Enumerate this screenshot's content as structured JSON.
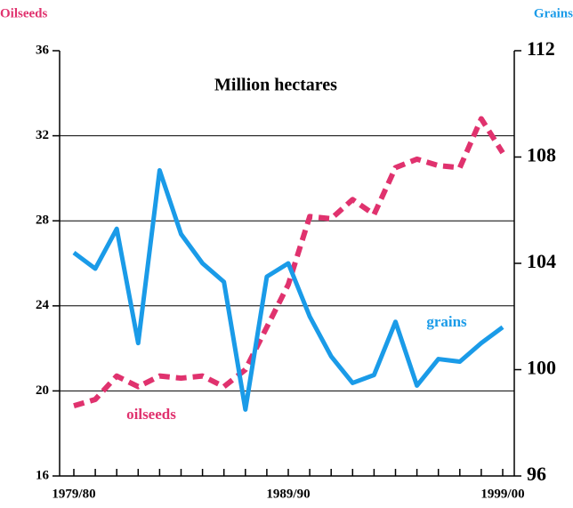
{
  "chart_data": {
    "type": "line",
    "title": "Million hectares",
    "y_label": "Oilseeds",
    "y2_label": "Grains",
    "categories": [
      "1979/80",
      null,
      null,
      null,
      null,
      null,
      null,
      null,
      null,
      null,
      "1989/90",
      null,
      null,
      null,
      null,
      null,
      null,
      null,
      null,
      null,
      "1999/00"
    ],
    "series": [
      {
        "name": "oilseeds",
        "color": "#e0326e",
        "dashed": true,
        "values": [
          19.3,
          19.6,
          20.7,
          20.2,
          20.7,
          20.6,
          20.7,
          20.2,
          21.0,
          23.0,
          25.0,
          28.2,
          28.1,
          29.0,
          28.3,
          30.5,
          30.9,
          30.6,
          30.5,
          32.8,
          31.2
        ]
      },
      {
        "name": "grains",
        "color": "#1a9be8",
        "axis": "y2",
        "values": [
          104.4,
          103.8,
          105.3,
          101.0,
          107.5,
          105.1,
          104.0,
          103.3,
          98.5,
          103.5,
          104.0,
          102.0,
          100.5,
          99.5,
          99.8,
          101.8,
          99.4,
          100.4,
          100.3,
          101.0,
          101.6
        ]
      }
    ],
    "ylim": [
      16,
      36
    ],
    "yticks": [
      16,
      20,
      24,
      28,
      32,
      36
    ],
    "y2lim": [
      96,
      112
    ],
    "y2ticks": [
      96,
      100,
      104,
      108,
      112
    ],
    "grid": true
  }
}
